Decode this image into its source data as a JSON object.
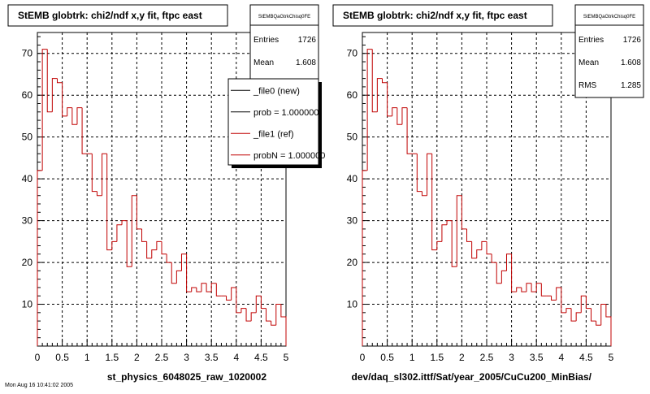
{
  "colors": {
    "background": "#ffffff",
    "frame": "#000000",
    "histogram": "#c00000",
    "new_line": "#000000",
    "ref_line": "#c00000",
    "grid": "#000000"
  },
  "footer_text": "Mon Aug 16 10:41:02 2005",
  "chart_data": [
    {
      "type": "histogram",
      "title": "StEMB globtrk: chi2/ndf x,y fit, ftpc east",
      "xlabel": "st_physics_6048025_raw_1020002",
      "ylabel": "",
      "xlim": [
        0,
        5
      ],
      "ylim": [
        0,
        75
      ],
      "grid": true,
      "xticks": [
        "0",
        "0.5",
        "1",
        "1.5",
        "2",
        "2.5",
        "3",
        "3.5",
        "4",
        "4.5",
        "5"
      ],
      "yticks": [
        "10",
        "20",
        "30",
        "40",
        "50",
        "60",
        "70"
      ],
      "bin_width": 0.1,
      "values": [
        42,
        71,
        56,
        64,
        63,
        55,
        57,
        53,
        57,
        46,
        46,
        37,
        36,
        46,
        23,
        25,
        29,
        30,
        19,
        36,
        28,
        25,
        21,
        23,
        25,
        22,
        20,
        15,
        18,
        22,
        13,
        14,
        13,
        15,
        13,
        15,
        12,
        12,
        11,
        14,
        8,
        9,
        6,
        8,
        12,
        9,
        6,
        5,
        10,
        7
      ],
      "stats": {
        "name": "StEMBQaGtrkChisq0FE",
        "rows": [
          {
            "label": "Entries",
            "value": "1726"
          },
          {
            "label": "Mean",
            "value": "1.608"
          }
        ]
      },
      "legend": {
        "entries": [
          {
            "label": "_file0 (new)",
            "color": "#000000"
          },
          {
            "label": "prob = 1.000000",
            "color": "#000000"
          },
          {
            "label": "_file1 (ref)",
            "color": "#c00000"
          },
          {
            "label": "probN = 1.000000",
            "color": "#c00000"
          }
        ]
      }
    },
    {
      "type": "histogram",
      "title": "StEMB globtrk: chi2/ndf x,y fit, ftpc east",
      "xlabel": "dev/daq_sl302.ittf/Sat/year_2005/CuCu200_MinBias/",
      "ylabel": "",
      "xlim": [
        0,
        5
      ],
      "ylim": [
        0,
        75
      ],
      "grid": true,
      "xticks": [
        "0",
        "0.5",
        "1",
        "1.5",
        "2",
        "2.5",
        "3",
        "3.5",
        "4",
        "4.5",
        "5"
      ],
      "yticks": [
        "10",
        "20",
        "30",
        "40",
        "50",
        "60",
        "70"
      ],
      "bin_width": 0.1,
      "values": [
        42,
        71,
        56,
        64,
        63,
        55,
        57,
        53,
        57,
        46,
        46,
        37,
        36,
        46,
        23,
        25,
        29,
        30,
        19,
        36,
        28,
        25,
        21,
        23,
        25,
        22,
        20,
        15,
        18,
        22,
        13,
        14,
        13,
        15,
        13,
        15,
        12,
        12,
        11,
        14,
        8,
        9,
        6,
        8,
        12,
        9,
        6,
        5,
        10,
        7
      ],
      "stats": {
        "name": "StEMBQaGtrkChisq0FE",
        "rows": [
          {
            "label": "Entries",
            "value": "1726"
          },
          {
            "label": "Mean",
            "value": "1.608"
          },
          {
            "label": "RMS",
            "value": "1.285"
          }
        ]
      }
    }
  ]
}
